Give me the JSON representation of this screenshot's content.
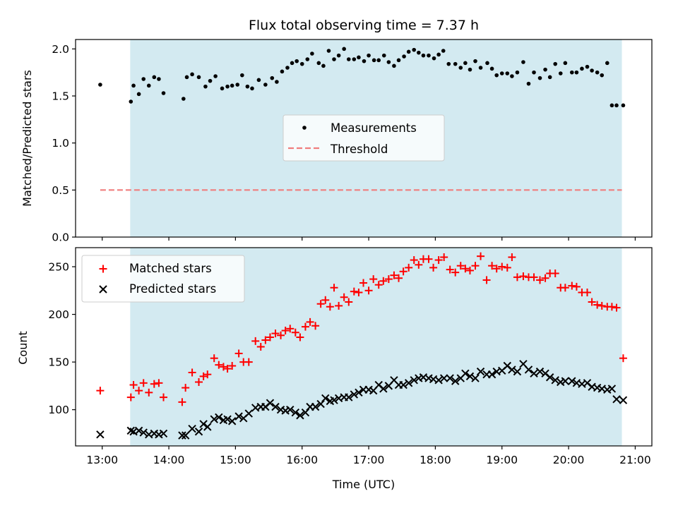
{
  "chart_data": [
    {
      "type": "scatter",
      "title": "Flux total observing time = 7.37 h",
      "xlabel": "",
      "ylabel": "Matched/Predicted stars",
      "xlim": [
        12.6,
        21.25
      ],
      "ylim": [
        0.0,
        2.1
      ],
      "yticks": [
        0.0,
        0.5,
        1.0,
        1.5,
        2.0
      ],
      "ytick_labels": [
        "0.0",
        "0.5",
        "1.0",
        "1.5",
        "2.0"
      ],
      "shaded_region": {
        "x": [
          13.42,
          20.8
        ],
        "color": "#d3eaf1"
      },
      "threshold": {
        "name": "Threshold",
        "value": 0.5,
        "x": [
          12.97,
          20.8
        ],
        "color": "#f07e7e"
      },
      "legend": {
        "placement": "center",
        "entries": [
          "Measurements",
          "Threshold"
        ]
      },
      "series": [
        {
          "name": "Measurements",
          "marker": "dot",
          "color": "#000000",
          "x": [
            12.97,
            13.43,
            13.47,
            13.55,
            13.62,
            13.7,
            13.78,
            13.85,
            13.92,
            14.22,
            14.27,
            14.35,
            14.45,
            14.55,
            14.62,
            14.7,
            14.8,
            14.88,
            14.95,
            15.03,
            15.1,
            15.18,
            15.25,
            15.35,
            15.45,
            15.55,
            15.62,
            15.7,
            15.78,
            15.85,
            15.92,
            16.0,
            16.08,
            16.15,
            16.25,
            16.32,
            16.4,
            16.48,
            16.55,
            16.63,
            16.7,
            16.78,
            16.85,
            16.93,
            17.0,
            17.08,
            17.15,
            17.23,
            17.3,
            17.38,
            17.45,
            17.53,
            17.6,
            17.68,
            17.75,
            17.82,
            17.9,
            17.98,
            18.05,
            18.12,
            18.2,
            18.3,
            18.38,
            18.45,
            18.52,
            18.6,
            18.68,
            18.78,
            18.85,
            18.92,
            19.0,
            19.08,
            19.15,
            19.23,
            19.32,
            19.4,
            19.48,
            19.57,
            19.65,
            19.72,
            19.8,
            19.88,
            19.95,
            20.05,
            20.12,
            20.2,
            20.28,
            20.35,
            20.43,
            20.5,
            20.58,
            20.65,
            20.72,
            20.82
          ],
          "y": [
            1.62,
            1.44,
            1.61,
            1.52,
            1.68,
            1.61,
            1.7,
            1.68,
            1.53,
            1.47,
            1.7,
            1.73,
            1.7,
            1.6,
            1.66,
            1.71,
            1.58,
            1.6,
            1.61,
            1.62,
            1.72,
            1.6,
            1.58,
            1.67,
            1.62,
            1.69,
            1.65,
            1.76,
            1.8,
            1.85,
            1.87,
            1.84,
            1.89,
            1.95,
            1.85,
            1.82,
            1.98,
            1.89,
            1.93,
            2.0,
            1.89,
            1.89,
            1.91,
            1.87,
            1.93,
            1.88,
            1.88,
            1.93,
            1.86,
            1.82,
            1.88,
            1.92,
            1.97,
            1.99,
            1.96,
            1.93,
            1.93,
            1.9,
            1.94,
            1.98,
            1.84,
            1.84,
            1.8,
            1.85,
            1.78,
            1.87,
            1.8,
            1.85,
            1.79,
            1.72,
            1.74,
            1.74,
            1.71,
            1.75,
            1.86,
            1.63,
            1.75,
            1.69,
            1.78,
            1.7,
            1.84,
            1.74,
            1.85,
            1.75,
            1.75,
            1.79,
            1.81,
            1.77,
            1.75,
            1.72,
            1.85,
            1.4,
            1.4,
            1.4
          ]
        }
      ]
    },
    {
      "type": "scatter",
      "title": "",
      "xlabel": "Time (UTC)",
      "ylabel": "Count",
      "xlim": [
        12.6,
        21.25
      ],
      "ylim": [
        62,
        270
      ],
      "yticks": [
        100,
        150,
        200,
        250
      ],
      "ytick_labels": [
        "100",
        "150",
        "200",
        "250"
      ],
      "xticks": [
        13,
        14,
        15,
        16,
        17,
        18,
        19,
        20,
        21
      ],
      "xtick_labels": [
        "13:00",
        "14:00",
        "15:00",
        "16:00",
        "17:00",
        "18:00",
        "19:00",
        "20:00",
        "21:00"
      ],
      "shaded_region": {
        "x": [
          13.42,
          20.8
        ],
        "color": "#d3eaf1"
      },
      "legend": {
        "placement": "top-left",
        "entries": [
          "Matched stars",
          "Predicted stars"
        ]
      },
      "series": [
        {
          "name": "Matched stars",
          "marker": "plus",
          "color": "#ff0000",
          "x": [
            12.97,
            13.43,
            13.47,
            13.55,
            13.62,
            13.7,
            13.78,
            13.85,
            13.92,
            14.2,
            14.25,
            14.35,
            14.45,
            14.52,
            14.58,
            14.68,
            14.75,
            14.82,
            14.88,
            14.95,
            15.05,
            15.12,
            15.2,
            15.3,
            15.38,
            15.45,
            15.52,
            15.6,
            15.68,
            15.75,
            15.82,
            15.9,
            15.97,
            16.05,
            16.12,
            16.2,
            16.28,
            16.35,
            16.42,
            16.48,
            16.55,
            16.63,
            16.7,
            16.78,
            16.85,
            16.92,
            17.0,
            17.07,
            17.15,
            17.22,
            17.3,
            17.38,
            17.45,
            17.52,
            17.6,
            17.68,
            17.75,
            17.82,
            17.9,
            17.97,
            18.05,
            18.13,
            18.22,
            18.3,
            18.38,
            18.45,
            18.52,
            18.6,
            18.68,
            18.77,
            18.85,
            18.92,
            19.0,
            19.08,
            19.15,
            19.23,
            19.32,
            19.4,
            19.48,
            19.57,
            19.65,
            19.72,
            19.8,
            19.88,
            19.95,
            20.05,
            20.12,
            20.2,
            20.28,
            20.35,
            20.43,
            20.5,
            20.58,
            20.65,
            20.72,
            20.82
          ],
          "y": [
            120,
            113,
            126,
            120,
            128,
            118,
            127,
            128,
            113,
            108,
            123,
            139,
            129,
            135,
            137,
            154,
            147,
            145,
            143,
            146,
            159,
            150,
            150,
            172,
            166,
            173,
            176,
            180,
            178,
            183,
            185,
            181,
            176,
            187,
            192,
            188,
            211,
            215,
            208,
            228,
            209,
            218,
            213,
            224,
            223,
            233,
            225,
            237,
            231,
            235,
            237,
            241,
            238,
            245,
            249,
            257,
            252,
            258,
            258,
            249,
            257,
            260,
            247,
            244,
            251,
            248,
            246,
            251,
            261,
            236,
            251,
            248,
            250,
            249,
            260,
            239,
            240,
            239,
            239,
            236,
            238,
            243,
            243,
            228,
            228,
            230,
            229,
            223,
            223,
            213,
            210,
            209,
            208,
            208,
            207,
            154
          ]
        },
        {
          "name": "Predicted stars",
          "marker": "x",
          "color": "#000000",
          "x": [
            12.97,
            13.43,
            13.47,
            13.55,
            13.62,
            13.7,
            13.78,
            13.85,
            13.92,
            14.2,
            14.25,
            14.35,
            14.45,
            14.52,
            14.58,
            14.68,
            14.75,
            14.82,
            14.88,
            14.95,
            15.05,
            15.12,
            15.2,
            15.3,
            15.38,
            15.45,
            15.52,
            15.6,
            15.68,
            15.75,
            15.82,
            15.9,
            15.97,
            16.05,
            16.12,
            16.2,
            16.28,
            16.35,
            16.42,
            16.48,
            16.55,
            16.63,
            16.7,
            16.78,
            16.85,
            16.92,
            17.0,
            17.07,
            17.15,
            17.22,
            17.3,
            17.38,
            17.45,
            17.52,
            17.6,
            17.68,
            17.75,
            17.82,
            17.9,
            17.97,
            18.05,
            18.13,
            18.22,
            18.3,
            18.38,
            18.45,
            18.52,
            18.6,
            18.68,
            18.77,
            18.85,
            18.92,
            19.0,
            19.08,
            19.15,
            19.23,
            19.32,
            19.4,
            19.48,
            19.57,
            19.65,
            19.72,
            19.8,
            19.88,
            19.95,
            20.05,
            20.12,
            20.2,
            20.28,
            20.35,
            20.43,
            20.5,
            20.58,
            20.65,
            20.72,
            20.82
          ],
          "y": [
            74,
            78,
            77,
            78,
            76,
            74,
            75,
            74,
            75,
            73,
            73,
            80,
            77,
            85,
            82,
            90,
            92,
            89,
            90,
            88,
            93,
            91,
            96,
            102,
            103,
            103,
            107,
            103,
            100,
            99,
            100,
            97,
            94,
            97,
            103,
            103,
            106,
            112,
            109,
            110,
            112,
            113,
            113,
            116,
            118,
            121,
            121,
            120,
            126,
            122,
            125,
            131,
            126,
            126,
            128,
            131,
            133,
            134,
            133,
            132,
            131,
            133,
            133,
            130,
            133,
            138,
            135,
            133,
            140,
            137,
            137,
            140,
            141,
            146,
            142,
            140,
            148,
            142,
            138,
            140,
            138,
            134,
            131,
            129,
            130,
            130,
            128,
            127,
            128,
            124,
            123,
            122,
            121,
            122,
            111,
            110
          ]
        }
      ]
    }
  ]
}
